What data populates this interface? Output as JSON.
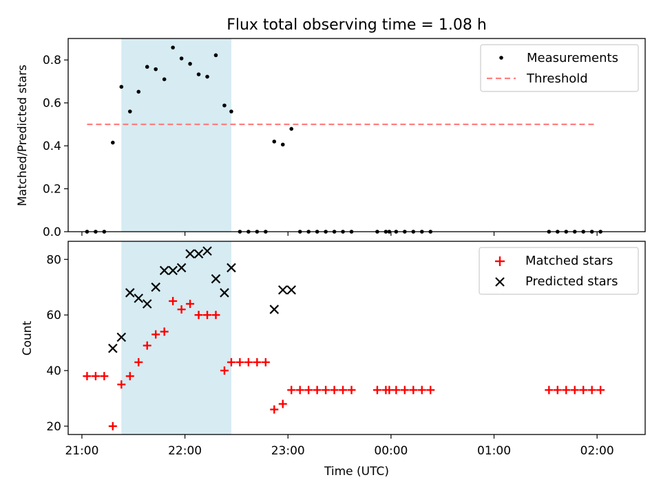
{
  "figure_title": "Flux total observing time = 1.08 h",
  "colors": {
    "measurement": "#000000",
    "threshold": "#ff7f7f",
    "matched": "#ff0000",
    "predicted": "#000000",
    "highlight": "#add8e6"
  },
  "chart_data": [
    {
      "type": "scatter",
      "panel": "top",
      "ylabel": "Matched/Predicted stars",
      "xlabel": "",
      "ylim": [
        0,
        0.9
      ],
      "xlim": [
        "20:52",
        "02:28"
      ],
      "yticks": [
        0.0,
        0.2,
        0.4,
        0.6,
        0.8
      ],
      "ytick_labels": [
        "0.0",
        "0.2",
        "0.4",
        "0.6",
        "0.8"
      ],
      "xticks": [
        "21:00",
        "22:00",
        "23:00",
        "00:00",
        "01:00",
        "02:00"
      ],
      "legend": {
        "placement": "top-right",
        "entries": [
          "Measurements",
          "Threshold"
        ]
      },
      "highlight_span": [
        "21:23",
        "22:27"
      ],
      "threshold": {
        "name": "Threshold",
        "value": 0.5,
        "x_range": [
          "21:03",
          "02:00"
        ]
      },
      "series": [
        {
          "name": "Measurements",
          "x": [
            "21:03",
            "21:08",
            "21:13",
            "21:18",
            "21:23",
            "21:28",
            "21:33",
            "21:38",
            "21:43",
            "21:48",
            "21:53",
            "21:58",
            "22:03",
            "22:08",
            "22:13",
            "22:18",
            "22:23",
            "22:27",
            "22:32",
            "22:37",
            "22:42",
            "22:47",
            "22:52",
            "22:57",
            "23:02",
            "23:07",
            "23:12",
            "23:17",
            "23:22",
            "23:27",
            "23:32",
            "23:37",
            "23:52",
            "23:57",
            "23:59",
            "00:03",
            "00:08",
            "00:13",
            "00:18",
            "00:23",
            "01:32",
            "01:37",
            "01:42",
            "01:47",
            "01:52",
            "01:57",
            "02:02"
          ],
          "values": [
            0,
            0,
            0,
            0.415,
            0.675,
            0.56,
            0.652,
            0.768,
            0.757,
            0.71,
            0.858,
            0.807,
            0.782,
            0.733,
            0.722,
            0.822,
            0.588,
            0.56,
            0,
            0,
            0,
            0,
            0.42,
            0.406,
            0.479,
            0,
            0,
            0,
            0,
            0,
            0,
            0,
            0,
            0,
            0,
            0,
            0,
            0,
            0,
            0,
            0,
            0,
            0,
            0,
            0,
            0,
            0
          ]
        }
      ]
    },
    {
      "type": "scatter",
      "panel": "bottom",
      "ylabel": "Count",
      "xlabel": "Time (UTC)",
      "ylim": [
        17,
        86.5
      ],
      "xlim": [
        "20:52",
        "02:28"
      ],
      "yticks": [
        20,
        40,
        60,
        80
      ],
      "ytick_labels": [
        "20",
        "40",
        "60",
        "80"
      ],
      "xticks": [
        "21:00",
        "22:00",
        "23:00",
        "00:00",
        "01:00",
        "02:00"
      ],
      "xtick_labels": [
        "21:00",
        "22:00",
        "23:00",
        "00:00",
        "01:00",
        "02:00"
      ],
      "legend": {
        "placement": "top-right",
        "entries": [
          "Matched stars",
          "Predicted stars"
        ]
      },
      "highlight_span": [
        "21:23",
        "22:27"
      ],
      "series": [
        {
          "name": "Matched stars",
          "x": [
            "21:03",
            "21:08",
            "21:13",
            "21:18",
            "21:23",
            "21:28",
            "21:33",
            "21:38",
            "21:43",
            "21:48",
            "21:53",
            "21:58",
            "22:03",
            "22:08",
            "22:13",
            "22:18",
            "22:23",
            "22:27",
            "22:32",
            "22:37",
            "22:42",
            "22:47",
            "22:52",
            "22:57",
            "23:02",
            "23:07",
            "23:12",
            "23:17",
            "23:22",
            "23:27",
            "23:32",
            "23:37",
            "23:52",
            "23:57",
            "23:59",
            "00:03",
            "00:08",
            "00:13",
            "00:18",
            "00:23",
            "01:32",
            "01:37",
            "01:42",
            "01:47",
            "01:52",
            "01:57",
            "02:02"
          ],
          "values": [
            38,
            38,
            38,
            20,
            35,
            38,
            43,
            49,
            53,
            54,
            65,
            62,
            64,
            60,
            60,
            60,
            40,
            43,
            43,
            43,
            43,
            43,
            26,
            28,
            33,
            33,
            33,
            33,
            33,
            33,
            33,
            33,
            33,
            33,
            33,
            33,
            33,
            33,
            33,
            33,
            33,
            33,
            33,
            33,
            33,
            33,
            33
          ]
        },
        {
          "name": "Predicted stars",
          "x": [
            "21:18",
            "21:23",
            "21:28",
            "21:33",
            "21:38",
            "21:43",
            "21:48",
            "21:53",
            "21:58",
            "22:03",
            "22:08",
            "22:13",
            "22:18",
            "22:23",
            "22:27",
            "22:52",
            "22:57",
            "23:02"
          ],
          "values": [
            48,
            52,
            68,
            66,
            64,
            70,
            76,
            76,
            77,
            82,
            82,
            83,
            73,
            68,
            77,
            62,
            69,
            69
          ]
        }
      ]
    }
  ]
}
